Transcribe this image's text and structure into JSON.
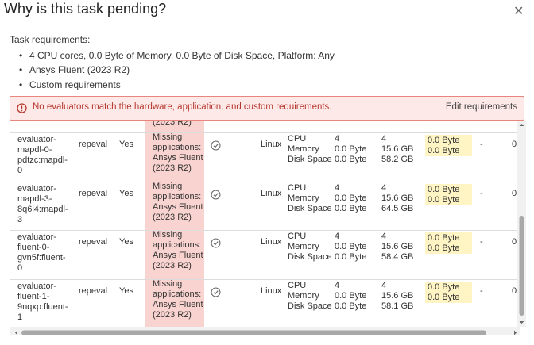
{
  "header": {
    "title": "Why is this task pending?"
  },
  "requirements": {
    "label": "Task requirements:",
    "items": [
      "4 CPU cores, 0.0 Byte of Memory, 0.0 Byte of Disk Space, Platform: Any",
      "Ansys Fluent (2023 R2)",
      "Custom requirements"
    ]
  },
  "alert": {
    "message": "No evaluators match the hardware, application, and custom requirements.",
    "action": "Edit requirements"
  },
  "table": {
    "partial_row_fragment": "(2023 R2)",
    "rows": [
      {
        "name": "evaluator-mapdl-0-pdtzc:mapdl-0",
        "user": "repeval",
        "enabled": "Yes",
        "missing": "Missing applications: Ansys Fluent (2023 R2)",
        "os": "Linux",
        "resources": [
          "CPU",
          "Memory",
          "Disk Space"
        ],
        "requested": [
          "4",
          "0.0 Byte",
          "0.0 Byte"
        ],
        "available": [
          "4",
          "15.6 GB",
          "58.2 GB"
        ],
        "shortfall": [
          "0.0 Byte",
          "0.0 Byte"
        ],
        "extra": "-",
        "last": "0"
      },
      {
        "name": "evaluator-mapdl-3-8q6l4:mapdl-3",
        "user": "repeval",
        "enabled": "Yes",
        "missing": "Missing applications: Ansys Fluent (2023 R2)",
        "os": "Linux",
        "resources": [
          "CPU",
          "Memory",
          "Disk Space"
        ],
        "requested": [
          "4",
          "0.0 Byte",
          "0.0 Byte"
        ],
        "available": [
          "4",
          "15.6 GB",
          "64.5 GB"
        ],
        "shortfall": [
          "0.0 Byte",
          "0.0 Byte"
        ],
        "extra": "-",
        "last": "0"
      },
      {
        "name": "evaluator-fluent-0-gvn5f:fluent-0",
        "user": "repeval",
        "enabled": "Yes",
        "missing": "Missing applications: Ansys Fluent (2023 R2)",
        "os": "Linux",
        "resources": [
          "CPU",
          "Memory",
          "Disk Space"
        ],
        "requested": [
          "4",
          "0.0 Byte",
          "0.0 Byte"
        ],
        "available": [
          "4",
          "15.6 GB",
          "58.4 GB"
        ],
        "shortfall": [
          "0.0 Byte",
          "0.0 Byte"
        ],
        "extra": "-",
        "last": "0"
      },
      {
        "name": "evaluator-fluent-1-9nqxp:fluent-1",
        "user": "repeval",
        "enabled": "Yes",
        "missing": "Missing applications: Ansys Fluent (2023 R2)",
        "os": "Linux",
        "resources": [
          "CPU",
          "Memory",
          "Disk Space"
        ],
        "requested": [
          "4",
          "0.0 Byte",
          "0.0 Byte"
        ],
        "available": [
          "4",
          "15.6 GB",
          "58.1 GB"
        ],
        "shortfall": [
          "0.0 Byte",
          "0.0 Byte"
        ],
        "extra": "-",
        "last": "0"
      }
    ]
  }
}
